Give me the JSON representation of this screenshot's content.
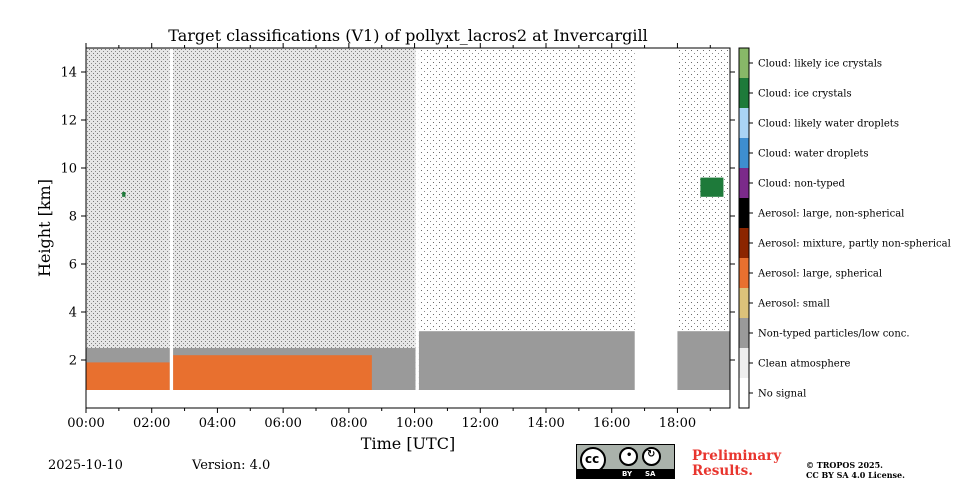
{
  "chart_data": {
    "type": "heatmap",
    "title": "Target classifications (V1) of pollyxt_lacros2 at Invercargill",
    "xlabel": "Time [UTC]",
    "ylabel": "Height [km]",
    "xlim_hours": [
      0,
      19.6
    ],
    "ylim_km": [
      0,
      15
    ],
    "x_ticks": [
      {
        "value": 0,
        "label": "00:00"
      },
      {
        "value": 2,
        "label": "02:00"
      },
      {
        "value": 4,
        "label": "04:00"
      },
      {
        "value": 6,
        "label": "06:00"
      },
      {
        "value": 8,
        "label": "08:00"
      },
      {
        "value": 10,
        "label": "10:00"
      },
      {
        "value": 12,
        "label": "12:00"
      },
      {
        "value": 14,
        "label": "14:00"
      },
      {
        "value": 16,
        "label": "16:00"
      },
      {
        "value": 18,
        "label": "18:00"
      }
    ],
    "y_ticks": [
      {
        "value": 2,
        "label": "2"
      },
      {
        "value": 4,
        "label": "4"
      },
      {
        "value": 6,
        "label": "6"
      },
      {
        "value": 8,
        "label": "8"
      },
      {
        "value": 10,
        "label": "10"
      },
      {
        "value": 12,
        "label": "12"
      },
      {
        "value": 14,
        "label": "14"
      }
    ],
    "classes": [
      {
        "label": "No signal",
        "color": "#ffffff"
      },
      {
        "label": "Clean atmosphere",
        "color": "#eeeeee"
      },
      {
        "label": "Non-typed particles/low conc.",
        "color": "#9a9a9a"
      },
      {
        "label": "Aerosol: small",
        "color": "#dcc27a"
      },
      {
        "label": "Aerosol: large, spherical",
        "color": "#e8702f"
      },
      {
        "label": "Aerosol: mixture, partly non-spherical",
        "color": "#8b2500"
      },
      {
        "label": "Aerosol: large, non-spherical",
        "color": "#000000"
      },
      {
        "label": "Cloud: non-typed",
        "color": "#7b2a8a"
      },
      {
        "label": "Cloud: water droplets",
        "color": "#3e8ed0"
      },
      {
        "label": "Cloud: likely water droplets",
        "color": "#aad4f5"
      },
      {
        "label": "Cloud: ice crystals",
        "color": "#1e7a3a"
      },
      {
        "label": "Cloud: likely ice crystals",
        "color": "#88b868"
      }
    ],
    "no_signal_gaps_hours": [
      [
        2.55,
        2.65
      ],
      [
        10.03,
        10.13
      ],
      [
        16.7,
        18.0
      ]
    ],
    "lowest_height_km": 0.75,
    "regions": [
      {
        "class": "Aerosol: large, spherical",
        "start_hour": 0.0,
        "end_hour": 2.55,
        "top_km": 1.9,
        "bottom_km": 0.75
      },
      {
        "class": "Aerosol: large, spherical",
        "start_hour": 2.65,
        "end_hour": 8.7,
        "top_km": 2.2,
        "bottom_km": 0.75
      },
      {
        "class": "Non-typed particles/low conc.",
        "start_hour": 0.0,
        "end_hour": 10.03,
        "top_km": 2.5,
        "bottom_km": 0.75
      },
      {
        "class": "Non-typed particles/low conc.",
        "start_hour": 10.13,
        "end_hour": 19.6,
        "top_km": 3.2,
        "bottom_km": 0.75
      },
      {
        "class": "Clean atmosphere",
        "start_hour": 0.0,
        "end_hour": 10.03,
        "top_km": 15.0,
        "bottom_km": 2.0
      },
      {
        "class": "Cloud: ice crystals",
        "start_hour": 1.1,
        "end_hour": 1.2,
        "top_km": 9.0,
        "bottom_km": 8.8
      },
      {
        "class": "Cloud: ice crystals",
        "start_hour": 18.7,
        "end_hour": 19.4,
        "top_km": 9.6,
        "bottom_km": 8.8
      }
    ],
    "grid": false,
    "colorbar_position": "right"
  },
  "footer": {
    "date": "2025-10-10",
    "version": "Version: 4.0",
    "license_badge_by": "BY",
    "license_badge_sa": "SA",
    "license_badge_cc": "cc",
    "preliminary_line1": "Preliminary",
    "preliminary_line2": "Results.",
    "copyright_line1": "© TROPOS 2025.",
    "copyright_line2": "CC BY SA 4.0 License."
  },
  "colors": {
    "preliminary": "#e8352e",
    "badge_bg": "#aab2ab"
  }
}
